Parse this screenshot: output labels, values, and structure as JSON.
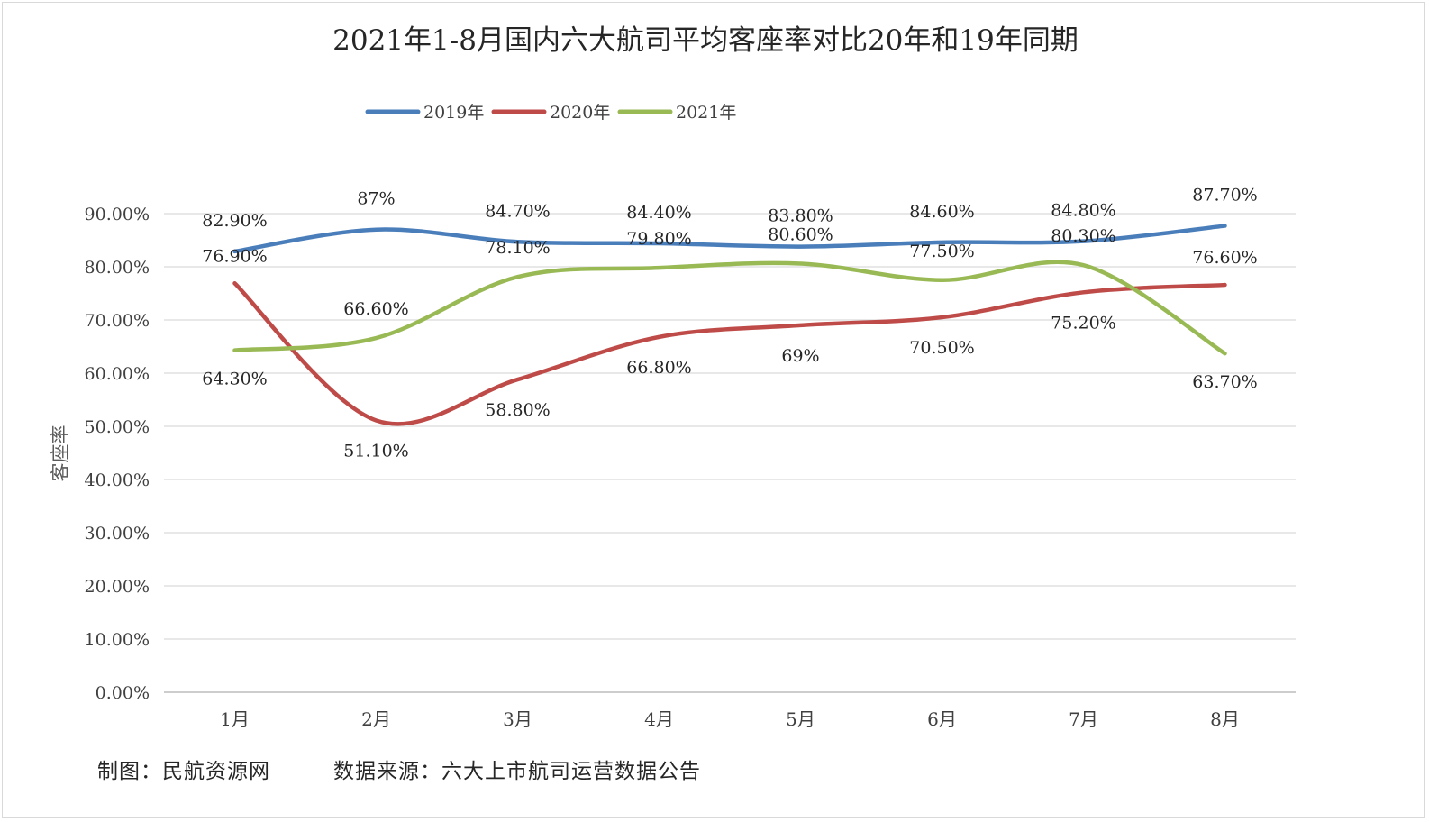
{
  "chart_data": {
    "type": "line",
    "title": "2021年1-8月国内六大航司平均客座率对比20年和19年同期",
    "ylabel": "客座率",
    "xlabel": "",
    "ylim": [
      0,
      90
    ],
    "yticks": [
      0,
      10,
      20,
      30,
      40,
      50,
      60,
      70,
      80,
      90
    ],
    "ytick_labels": [
      "0.00%",
      "10.00%",
      "20.00%",
      "30.00%",
      "40.00%",
      "50.00%",
      "60.00%",
      "70.00%",
      "80.00%",
      "90.00%"
    ],
    "categories": [
      "1月",
      "2月",
      "3月",
      "4月",
      "5月",
      "6月",
      "7月",
      "8月"
    ],
    "legend_position": "top",
    "grid": true,
    "series": [
      {
        "name": "2019年",
        "color": "#4a7ebb",
        "values": [
          82.9,
          87,
          84.7,
          84.4,
          83.8,
          84.6,
          84.8,
          87.7
        ],
        "labels": [
          "82.90%",
          "87%",
          "84.70%",
          "84.40%",
          "83.80%",
          "84.60%",
          "84.80%",
          "87.70%"
        ]
      },
      {
        "name": "2020年",
        "color": "#be4b48",
        "values": [
          76.9,
          51.1,
          58.8,
          66.8,
          69,
          70.5,
          75.2,
          76.6
        ],
        "labels": [
          "76.90%",
          "51.10%",
          "58.80%",
          "66.80%",
          "69%",
          "70.50%",
          "75.20%",
          "76.60%"
        ]
      },
      {
        "name": "2021年",
        "color": "#98b954",
        "values": [
          64.3,
          66.6,
          78.1,
          79.8,
          80.6,
          77.5,
          80.3,
          63.7
        ],
        "labels": [
          "64.30%",
          "66.60%",
          "78.10%",
          "79.80%",
          "80.60%",
          "77.50%",
          "80.30%",
          "63.70%"
        ]
      }
    ]
  },
  "footer": {
    "credit": "制图：民航资源网",
    "source": "数据来源：六大上市航司运营数据公告"
  }
}
